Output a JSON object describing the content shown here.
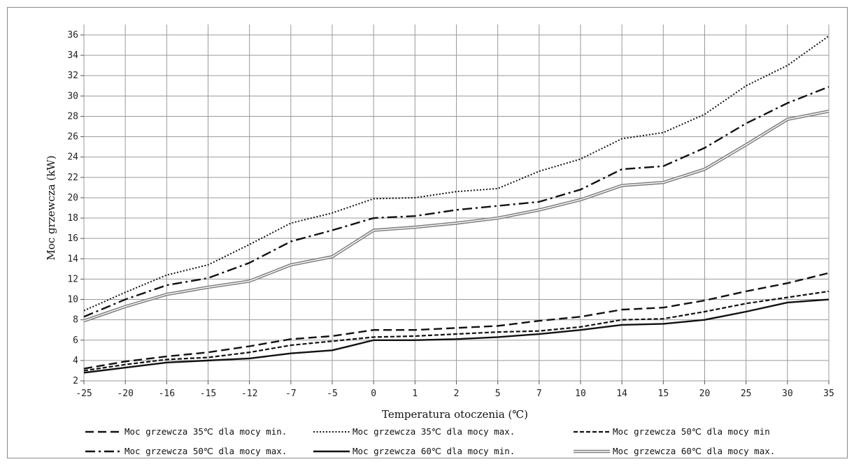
{
  "chart_data": {
    "type": "line",
    "title": "",
    "xlabel": "Temperatura otoczenia (℃)",
    "ylabel": "Moc grzewcza (kW)",
    "ylim": [
      2,
      36
    ],
    "y_ticks": [
      2,
      4,
      6,
      8,
      10,
      12,
      14,
      16,
      18,
      20,
      22,
      24,
      26,
      28,
      30,
      32,
      34,
      36
    ],
    "grid": true,
    "legend_position": "bottom",
    "categories": [
      "-25",
      "-20",
      "-16",
      "-15",
      "-12",
      "-7",
      "-5",
      "0",
      "1",
      "2",
      "5",
      "7",
      "10",
      "14",
      "15",
      "20",
      "25",
      "30",
      "35"
    ],
    "series": [
      {
        "name": "Moc grzewcza 35℃ dla mocy min.",
        "style": "dashed",
        "color": "#111111",
        "values": [
          3.2,
          3.9,
          4.4,
          4.8,
          5.4,
          6.1,
          6.4,
          7.0,
          7.0,
          7.2,
          7.4,
          7.9,
          8.3,
          9.0,
          9.2,
          9.9,
          10.8,
          11.6,
          12.6
        ]
      },
      {
        "name": "Moc grzewcza 35℃ dla mocy max.",
        "style": "dotted",
        "color": "#111111",
        "values": [
          8.9,
          10.7,
          12.4,
          13.4,
          15.4,
          17.5,
          18.5,
          19.9,
          20.0,
          20.6,
          20.9,
          22.6,
          23.8,
          25.8,
          26.4,
          28.2,
          31.0,
          33.0,
          35.9
        ]
      },
      {
        "name": "Moc grzewcza 50℃ dla mocy min",
        "style": "shortdash",
        "color": "#111111",
        "values": [
          3.0,
          3.6,
          4.1,
          4.3,
          4.8,
          5.5,
          5.9,
          6.3,
          6.4,
          6.6,
          6.8,
          6.9,
          7.3,
          8.0,
          8.1,
          8.8,
          9.6,
          10.2,
          10.8
        ]
      },
      {
        "name": "Moc grzewcza 50℃ dla mocy max.",
        "style": "dashdot",
        "color": "#111111",
        "values": [
          8.3,
          10.0,
          11.4,
          12.1,
          13.6,
          15.7,
          16.8,
          18.0,
          18.2,
          18.8,
          19.2,
          19.6,
          20.8,
          22.8,
          23.1,
          24.9,
          27.3,
          29.3,
          30.9
        ]
      },
      {
        "name": "Moc grzewcza 60℃ dla mocy min.",
        "style": "solid",
        "color": "#111111",
        "values": [
          2.8,
          3.3,
          3.8,
          4.0,
          4.2,
          4.7,
          5.0,
          6.0,
          6.0,
          6.1,
          6.3,
          6.6,
          7.0,
          7.5,
          7.6,
          8.0,
          8.8,
          9.7,
          10.0
        ]
      },
      {
        "name": "Moc grzewcza 60℃ dla mocy max.",
        "style": "double",
        "color": "#808080",
        "values": [
          7.9,
          9.3,
          10.5,
          11.2,
          11.8,
          13.4,
          14.2,
          16.8,
          17.1,
          17.5,
          18.0,
          18.8,
          19.8,
          21.2,
          21.5,
          22.8,
          25.2,
          27.7,
          28.5
        ]
      }
    ]
  }
}
